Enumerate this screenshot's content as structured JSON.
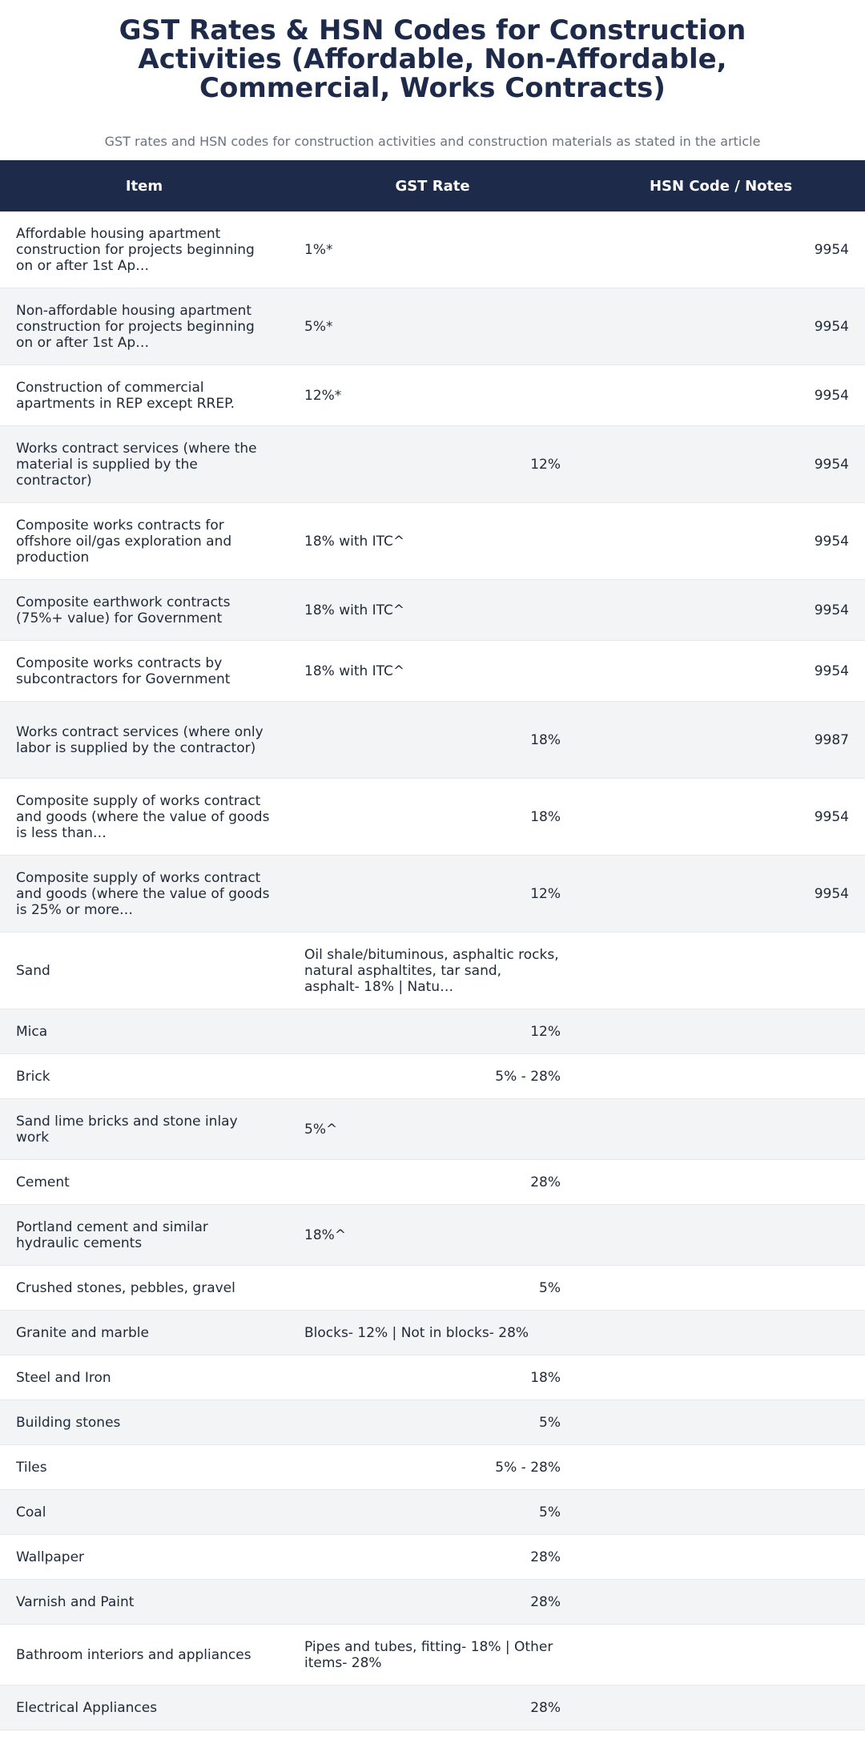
{
  "header": {
    "title": "GST Rates & HSN Codes for Construction Activities (Affordable, Non-Affordable, Commercial, Works Contracts)",
    "subtitle": "GST rates and HSN codes for construction activities and construction materials as stated in the article"
  },
  "table": {
    "columns": [
      "Item",
      "GST Rate",
      "HSN Code / Notes"
    ],
    "rows": [
      {
        "item": "Affordable housing apartment construction for projects beginning on or after 1st Ap…",
        "rate": "1%*",
        "hsn": "9954",
        "h": 96
      },
      {
        "item": "Non-affordable housing apartment construction for projects beginning on or after 1st Ap…",
        "rate": "5%*",
        "hsn": "9954",
        "h": 96
      },
      {
        "item": "Construction of commercial apartments in REP except RREP.",
        "rate": "12%*",
        "hsn": "9954",
        "h": 76
      },
      {
        "item": "Works contract services (where the material is supplied by the contractor)",
        "rate": "12%",
        "hsn": "9954",
        "h": 96
      },
      {
        "item": "Composite works contracts for offshore oil/gas exploration and production",
        "rate": "18% with ITC^",
        "hsn": "9954",
        "h": 96
      },
      {
        "item": "Composite earthwork contracts (75%+ value) for Government",
        "rate": "18% with ITC^",
        "hsn": "9954",
        "h": 76
      },
      {
        "item": "Composite works contracts by subcontractors for Government",
        "rate": "18% with ITC^",
        "hsn": "9954",
        "h": 76
      },
      {
        "item": "Works contract services (where only labor is supplied by the contractor)",
        "rate": "18%",
        "hsn": "9987",
        "h": 96
      },
      {
        "item": "Composite supply of works contract and goods (where the value of goods is less than…",
        "rate": "18%",
        "hsn": "9954",
        "h": 96
      },
      {
        "item": "Composite supply of works contract and goods (where the value of goods is 25% or more…",
        "rate": "12%",
        "hsn": "9954",
        "h": 96
      },
      {
        "item": "Sand",
        "rate": "Oil shale/bituminous, asphaltic rocks, natural asphaltites, tar sand, asphalt- 18% | Natu…",
        "hsn": "",
        "h": 96
      },
      {
        "item": "Mica",
        "rate": "12%",
        "hsn": "",
        "h": 56
      },
      {
        "item": "Brick",
        "rate": "5% - 28%",
        "hsn": "",
        "h": 56
      },
      {
        "item": "Sand lime bricks and stone inlay work",
        "rate": "5%^",
        "hsn": "",
        "h": 76
      },
      {
        "item": "Cement",
        "rate": "28%",
        "hsn": "",
        "h": 56
      },
      {
        "item": "Portland cement and similar hydraulic cements",
        "rate": "18%^",
        "hsn": "",
        "h": 76
      },
      {
        "item": "Crushed stones, pebbles, gravel",
        "rate": "5%",
        "hsn": "",
        "h": 56
      },
      {
        "item": "Granite and marble",
        "rate": "Blocks- 12% | Not in blocks- 28%",
        "hsn": "",
        "h": 56
      },
      {
        "item": "Steel and Iron",
        "rate": "18%",
        "hsn": "",
        "h": 56
      },
      {
        "item": "Building stones",
        "rate": "5%",
        "hsn": "",
        "h": 56
      },
      {
        "item": "Tiles",
        "rate": "5% - 28%",
        "hsn": "",
        "h": 56
      },
      {
        "item": "Coal",
        "rate": "5%",
        "hsn": "",
        "h": 56
      },
      {
        "item": "Wallpaper",
        "rate": "28%",
        "hsn": "",
        "h": 56
      },
      {
        "item": "Varnish and Paint",
        "rate": "28%",
        "hsn": "",
        "h": 56
      },
      {
        "item": "Bathroom interiors and appliances",
        "rate": "Pipes and tubes, fitting- 18% | Other items- 28%",
        "hsn": "",
        "h": 76
      },
      {
        "item": "Electrical Appliances",
        "rate": "28%",
        "hsn": "",
        "h": 56
      }
    ]
  }
}
